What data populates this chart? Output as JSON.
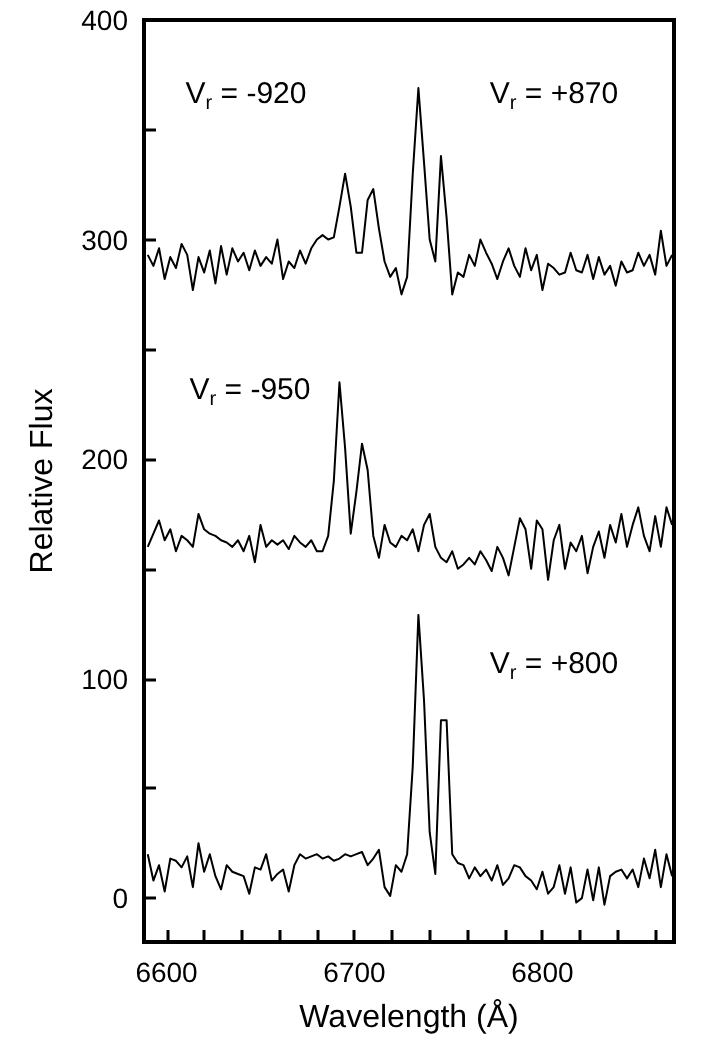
{
  "chart_data": {
    "type": "line",
    "xlabel": "Wavelength (Å)",
    "ylabel": "Relative Flux",
    "xlim": [
      6588,
      6870
    ],
    "ylim": [
      -20,
      400
    ],
    "xticks": [
      6600,
      {
        "value": 6620,
        "label": null
      },
      {
        "value": 6640,
        "label": null
      },
      {
        "value": 6660,
        "label": null
      },
      {
        "value": 6680,
        "label": null
      },
      6700,
      {
        "value": 6720,
        "label": null
      },
      {
        "value": 6740,
        "label": null
      },
      {
        "value": 6760,
        "label": null
      },
      {
        "value": 6780,
        "label": null
      },
      6800,
      {
        "value": 6820,
        "label": null
      },
      {
        "value": 6840,
        "label": null
      },
      {
        "value": 6860,
        "label": null
      }
    ],
    "yticks": [
      0,
      {
        "value": 50,
        "label": null
      },
      100,
      {
        "value": 150,
        "label": null
      },
      200,
      {
        "value": 250,
        "label": null
      },
      300,
      {
        "value": 350,
        "label": null
      },
      400
    ],
    "marker": "none",
    "line_style": "solid",
    "x": [
      6590,
      6593,
      6596,
      6599,
      6602,
      6605,
      6608,
      6611,
      6614,
      6617,
      6620,
      6623,
      6626,
      6629,
      6632,
      6635,
      6638,
      6641,
      6644,
      6647,
      6650,
      6653,
      6656,
      6659,
      6662,
      6665,
      6668,
      6671,
      6674,
      6677,
      6680,
      6683,
      6686,
      6689,
      6692,
      6695,
      6698,
      6701,
      6704,
      6707,
      6710,
      6713,
      6716,
      6719,
      6722,
      6725,
      6728,
      6731,
      6734,
      6737,
      6740,
      6743,
      6746,
      6749,
      6752,
      6755,
      6758,
      6761,
      6764,
      6767,
      6770,
      6773,
      6776,
      6779,
      6782,
      6785,
      6788,
      6791,
      6794,
      6797,
      6800,
      6803,
      6806,
      6809,
      6812,
      6815,
      6818,
      6821,
      6824,
      6827,
      6830,
      6833,
      6836,
      6839,
      6842,
      6845,
      6848,
      6851,
      6854,
      6857,
      6860,
      6863,
      6866,
      6869
    ],
    "series": [
      {
        "color": "#000000",
        "values": [
          293,
          288,
          296,
          282,
          292,
          287,
          298,
          293,
          277,
          292,
          285,
          295,
          280,
          297,
          284,
          296,
          290,
          294,
          286,
          295,
          288,
          292,
          289,
          300,
          282,
          290,
          287,
          295,
          289,
          296,
          300,
          302,
          300,
          301,
          315,
          330,
          315,
          294,
          294,
          318,
          323,
          305,
          290,
          283,
          287,
          275,
          283,
          330,
          369,
          335,
          300,
          290,
          338,
          310,
          275,
          285,
          283,
          293,
          288,
          300,
          294,
          289,
          282,
          290,
          296,
          288,
          283,
          296,
          286,
          293,
          277,
          289,
          287,
          284,
          285,
          294,
          286,
          285,
          293,
          282,
          292,
          284,
          288,
          279,
          290,
          285,
          286,
          294,
          288,
          293,
          284,
          304,
          288,
          293
        ]
      },
      {
        "color": "#000000",
        "values": [
          160,
          166,
          172,
          163,
          168,
          158,
          165,
          163,
          160,
          175,
          168,
          166,
          165,
          163,
          162,
          160,
          163,
          158,
          165,
          153,
          170,
          160,
          163,
          161,
          163,
          159,
          165,
          162,
          160,
          163,
          158,
          158,
          165,
          190,
          235,
          205,
          166,
          185,
          207,
          195,
          165,
          155,
          170,
          162,
          160,
          165,
          163,
          168,
          158,
          170,
          175,
          160,
          155,
          153,
          158,
          150,
          152,
          155,
          152,
          158,
          154,
          149,
          160,
          155,
          147,
          160,
          173,
          168,
          150,
          172,
          168,
          145,
          163,
          170,
          150,
          162,
          158,
          165,
          148,
          160,
          167,
          155,
          170,
          162,
          175,
          160,
          170,
          178,
          165,
          158,
          174,
          160,
          178,
          170
        ]
      },
      {
        "color": "#000000",
        "values": [
          20,
          8,
          15,
          3,
          18,
          17,
          14,
          19,
          5,
          25,
          12,
          20,
          10,
          4,
          15,
          12,
          11,
          10,
          2,
          14,
          13,
          20,
          8,
          11,
          13,
          3,
          15,
          20,
          18,
          19,
          20,
          18,
          19,
          17,
          18,
          20,
          19,
          20,
          21,
          15,
          18,
          22,
          5,
          1,
          15,
          12,
          20,
          60,
          129,
          90,
          30,
          11,
          81,
          81,
          20,
          16,
          15,
          9,
          14,
          10,
          13,
          8,
          15,
          6,
          9,
          15,
          14,
          10,
          8,
          4,
          12,
          2,
          5,
          15,
          2,
          14,
          -2,
          0,
          13,
          -1,
          14,
          -3,
          10,
          12,
          13,
          9,
          13,
          5,
          18,
          9,
          22,
          5,
          20,
          10
        ]
      }
    ],
    "annotations": [
      "V$_{r}$ = -920",
      "V$_{r}$ = +870",
      "V$_{r}$ = -950",
      "V$_{r}$ = +800"
    ]
  }
}
